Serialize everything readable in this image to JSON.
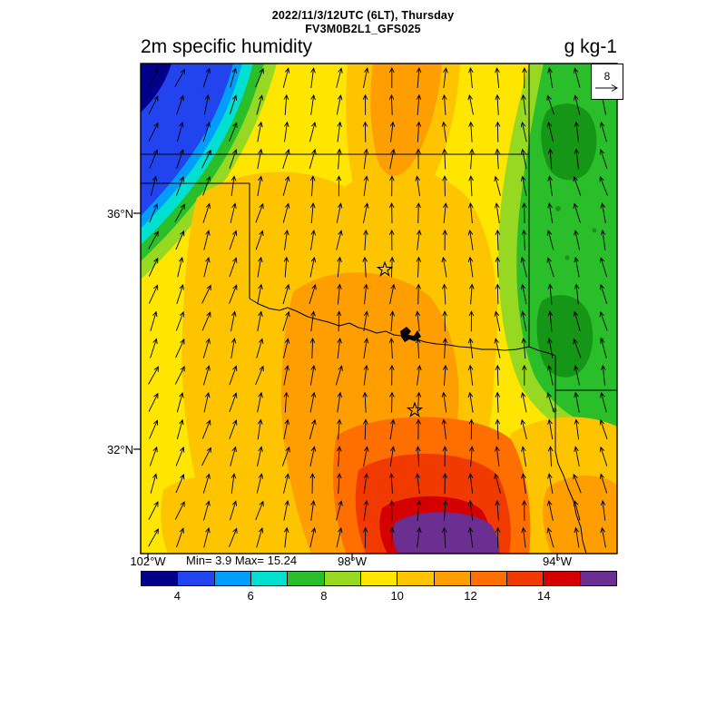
{
  "header": {
    "datetime_line": "2022/11/3/12UTC (6LT), Thursday",
    "model_line": "FV3M0B2L1_GFS025"
  },
  "title": {
    "text": "2m specific humidity",
    "units": "g kg-1"
  },
  "vector_key": {
    "label": "8"
  },
  "map": {
    "lat_labels": [
      {
        "text": "36°N"
      },
      {
        "text": "32°N"
      }
    ],
    "lon_labels": [
      {
        "text": "102°W"
      },
      {
        "text": "98°W"
      },
      {
        "text": "94°W"
      }
    ],
    "stats_text": "Min= 3.9 Max= 15.24"
  },
  "map_colors": {
    "dark_green": "#169616",
    "border": "#000000",
    "arrow": "#000000"
  },
  "colorbar": {
    "segments": 13,
    "colors": [
      "#00008b",
      "#2244ee",
      "#009dff",
      "#00dfd0",
      "#2abe2a",
      "#97d822",
      "#ffe600",
      "#ffc400",
      "#ff9e00",
      "#ff6f00",
      "#f13a00",
      "#d40000",
      "#6b2e91"
    ],
    "tick_labels": [
      "4",
      "6",
      "8",
      "10",
      "12",
      "14"
    ],
    "tick_positions": [
      1,
      3,
      5,
      7,
      9,
      11
    ]
  },
  "chart_data": {
    "type": "heatmap",
    "title": "2m specific humidity",
    "units": "g kg-1",
    "valid_time": "2022/11/3/12UTC (6LT), Thursday",
    "model": "FV3M0B2L1_GFS025",
    "min": 3.9,
    "max": 15.24,
    "wind_reference_value": 8,
    "colorbar_tick_values": [
      4,
      6,
      8,
      10,
      12,
      14
    ],
    "colorbar_range": [
      3,
      16
    ],
    "lat_ticks": [
      "36°N",
      "32°N"
    ],
    "lon_ticks": [
      "102°W",
      "98°W",
      "94°W"
    ],
    "legend_position": "bottom"
  }
}
